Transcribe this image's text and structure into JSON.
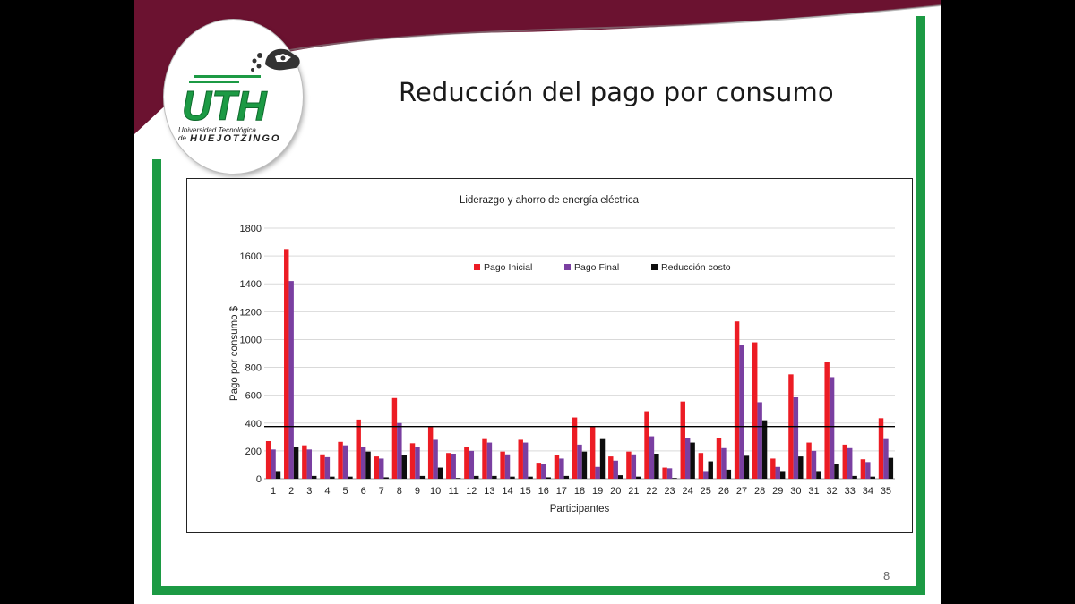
{
  "slide": {
    "title": "Reducción del pago por consumo",
    "page_number": "8"
  },
  "logo": {
    "acronym": "UTH",
    "line1": "Universidad Tecnológica",
    "line2_prefix": "de",
    "line2": "HUEJOTZINGO"
  },
  "colors": {
    "maroon": "#6b1230",
    "green": "#1c9a44",
    "pago_inicial": "#ec1c24",
    "pago_final": "#7a3fa1",
    "reduccion": "#0d0d0d"
  },
  "chart_data": {
    "type": "bar",
    "title": "Liderazgo y ahorro de energía eléctrica",
    "xlabel": "Participantes",
    "ylabel": "Pago por consumo $",
    "ylim": [
      0,
      1800
    ],
    "yticks": [
      0,
      200,
      400,
      600,
      800,
      1000,
      1200,
      1400,
      1600,
      1800
    ],
    "grid": true,
    "legend": "top-center",
    "categories": [
      "1",
      "2",
      "3",
      "4",
      "5",
      "6",
      "7",
      "8",
      "9",
      "10",
      "11",
      "12",
      "13",
      "14",
      "15",
      "16",
      "17",
      "18",
      "19",
      "20",
      "21",
      "22",
      "23",
      "24",
      "25",
      "26",
      "27",
      "28",
      "29",
      "30",
      "31",
      "32",
      "33",
      "34",
      "35"
    ],
    "series": [
      {
        "name": "Pago Inicial",
        "color": "#ec1c24",
        "values": [
          270,
          1650,
          240,
          175,
          265,
          425,
          160,
          580,
          255,
          375,
          185,
          225,
          285,
          195,
          280,
          115,
          170,
          440,
          375,
          160,
          195,
          485,
          80,
          555,
          185,
          290,
          1130,
          980,
          145,
          750,
          260,
          840,
          245,
          140,
          435
        ]
      },
      {
        "name": "Pago Final",
        "color": "#7a3fa1",
        "values": [
          210,
          1420,
          210,
          155,
          240,
          225,
          145,
          400,
          230,
          280,
          180,
          200,
          260,
          175,
          260,
          105,
          145,
          245,
          85,
          130,
          175,
          305,
          75,
          290,
          55,
          220,
          960,
          550,
          85,
          585,
          200,
          730,
          220,
          120,
          285
        ]
      },
      {
        "name": "Reducción costo",
        "color": "#0d0d0d",
        "values": [
          55,
          225,
          20,
          15,
          15,
          195,
          10,
          170,
          20,
          80,
          5,
          20,
          20,
          15,
          15,
          10,
          20,
          195,
          285,
          25,
          15,
          180,
          5,
          260,
          125,
          65,
          165,
          420,
          55,
          160,
          55,
          105,
          20,
          15,
          150
        ]
      }
    ],
    "reference_line": 375
  }
}
